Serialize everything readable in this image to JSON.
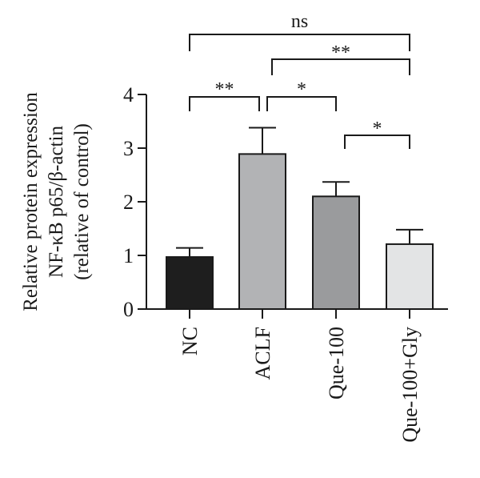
{
  "chart_data": {
    "type": "bar",
    "ylabel_lines": [
      "Relative protein expression",
      "NF-κB p65/β-actin",
      "(relative of control)"
    ],
    "categories": [
      "NC",
      "ACLF",
      "Que-100",
      "Que-100+Gly"
    ],
    "values": [
      0.97,
      2.89,
      2.1,
      1.21
    ],
    "errors": [
      0.17,
      0.49,
      0.27,
      0.27
    ],
    "colors": [
      "#1e1e1e",
      "#b2b3b5",
      "#9a9b9d",
      "#e3e4e5"
    ],
    "ylim": [
      0,
      4
    ],
    "yticks": [
      0,
      1,
      2,
      3,
      4
    ],
    "significance": [
      {
        "from": 0,
        "to": 1,
        "label": "**"
      },
      {
        "from": 1,
        "to": 2,
        "label": "*"
      },
      {
        "from": 2,
        "to": 3,
        "label": "*"
      },
      {
        "from": 1,
        "to": 3,
        "label": "**"
      },
      {
        "from": 0,
        "to": 3,
        "label": "ns"
      }
    ]
  }
}
